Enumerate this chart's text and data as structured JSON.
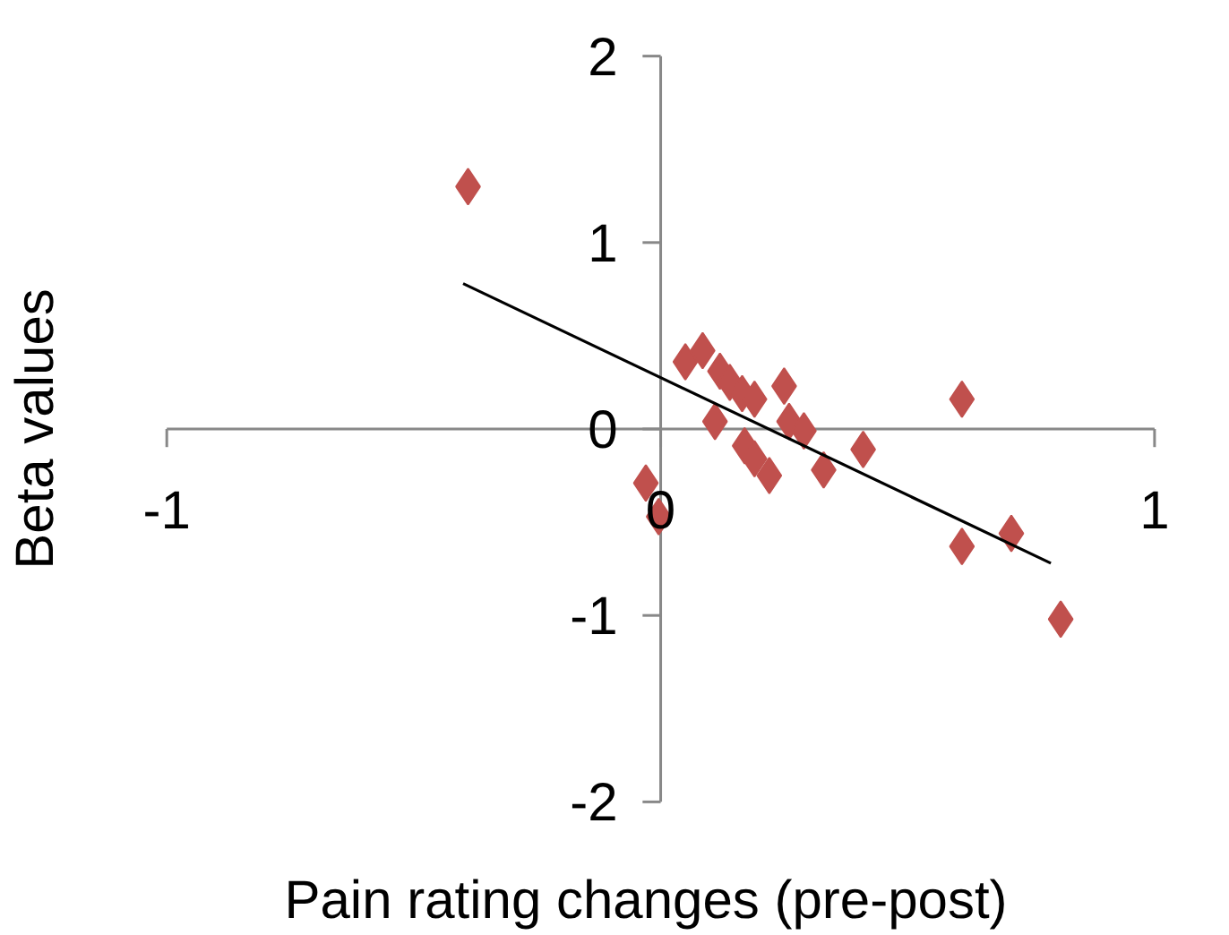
{
  "chart_data": {
    "type": "scatter",
    "xlabel": "Pain rating changes (pre-post)",
    "ylabel": "Beta values",
    "xlim": [
      -1,
      1
    ],
    "ylim": [
      -2,
      2
    ],
    "xticks": [
      -1,
      0,
      1
    ],
    "yticks": [
      -2,
      -1,
      0,
      1,
      2
    ],
    "grid": false,
    "marker": "diamond",
    "series": [
      {
        "color": "#c0504d",
        "x": [
          -0.39,
          -0.03,
          -0.004,
          0.05,
          0.085,
          0.12,
          0.14,
          0.11,
          0.165,
          0.19,
          0.25,
          0.17,
          0.19,
          0.22,
          0.26,
          0.29,
          0.33,
          0.41,
          0.61,
          0.61,
          0.71,
          0.81
        ],
        "values": [
          1.3,
          -0.29,
          -0.47,
          0.36,
          0.42,
          0.31,
          0.25,
          0.04,
          0.19,
          0.16,
          0.23,
          -0.09,
          -0.16,
          -0.25,
          0.04,
          -0.01,
          -0.22,
          -0.11,
          0.16,
          -0.63,
          -0.56,
          -1.02
        ]
      },
      {
        "type": "line",
        "color": "#000000",
        "marker": "none",
        "x": [
          -0.4,
          0.79
        ],
        "values": [
          0.78,
          -0.72
        ]
      }
    ]
  }
}
